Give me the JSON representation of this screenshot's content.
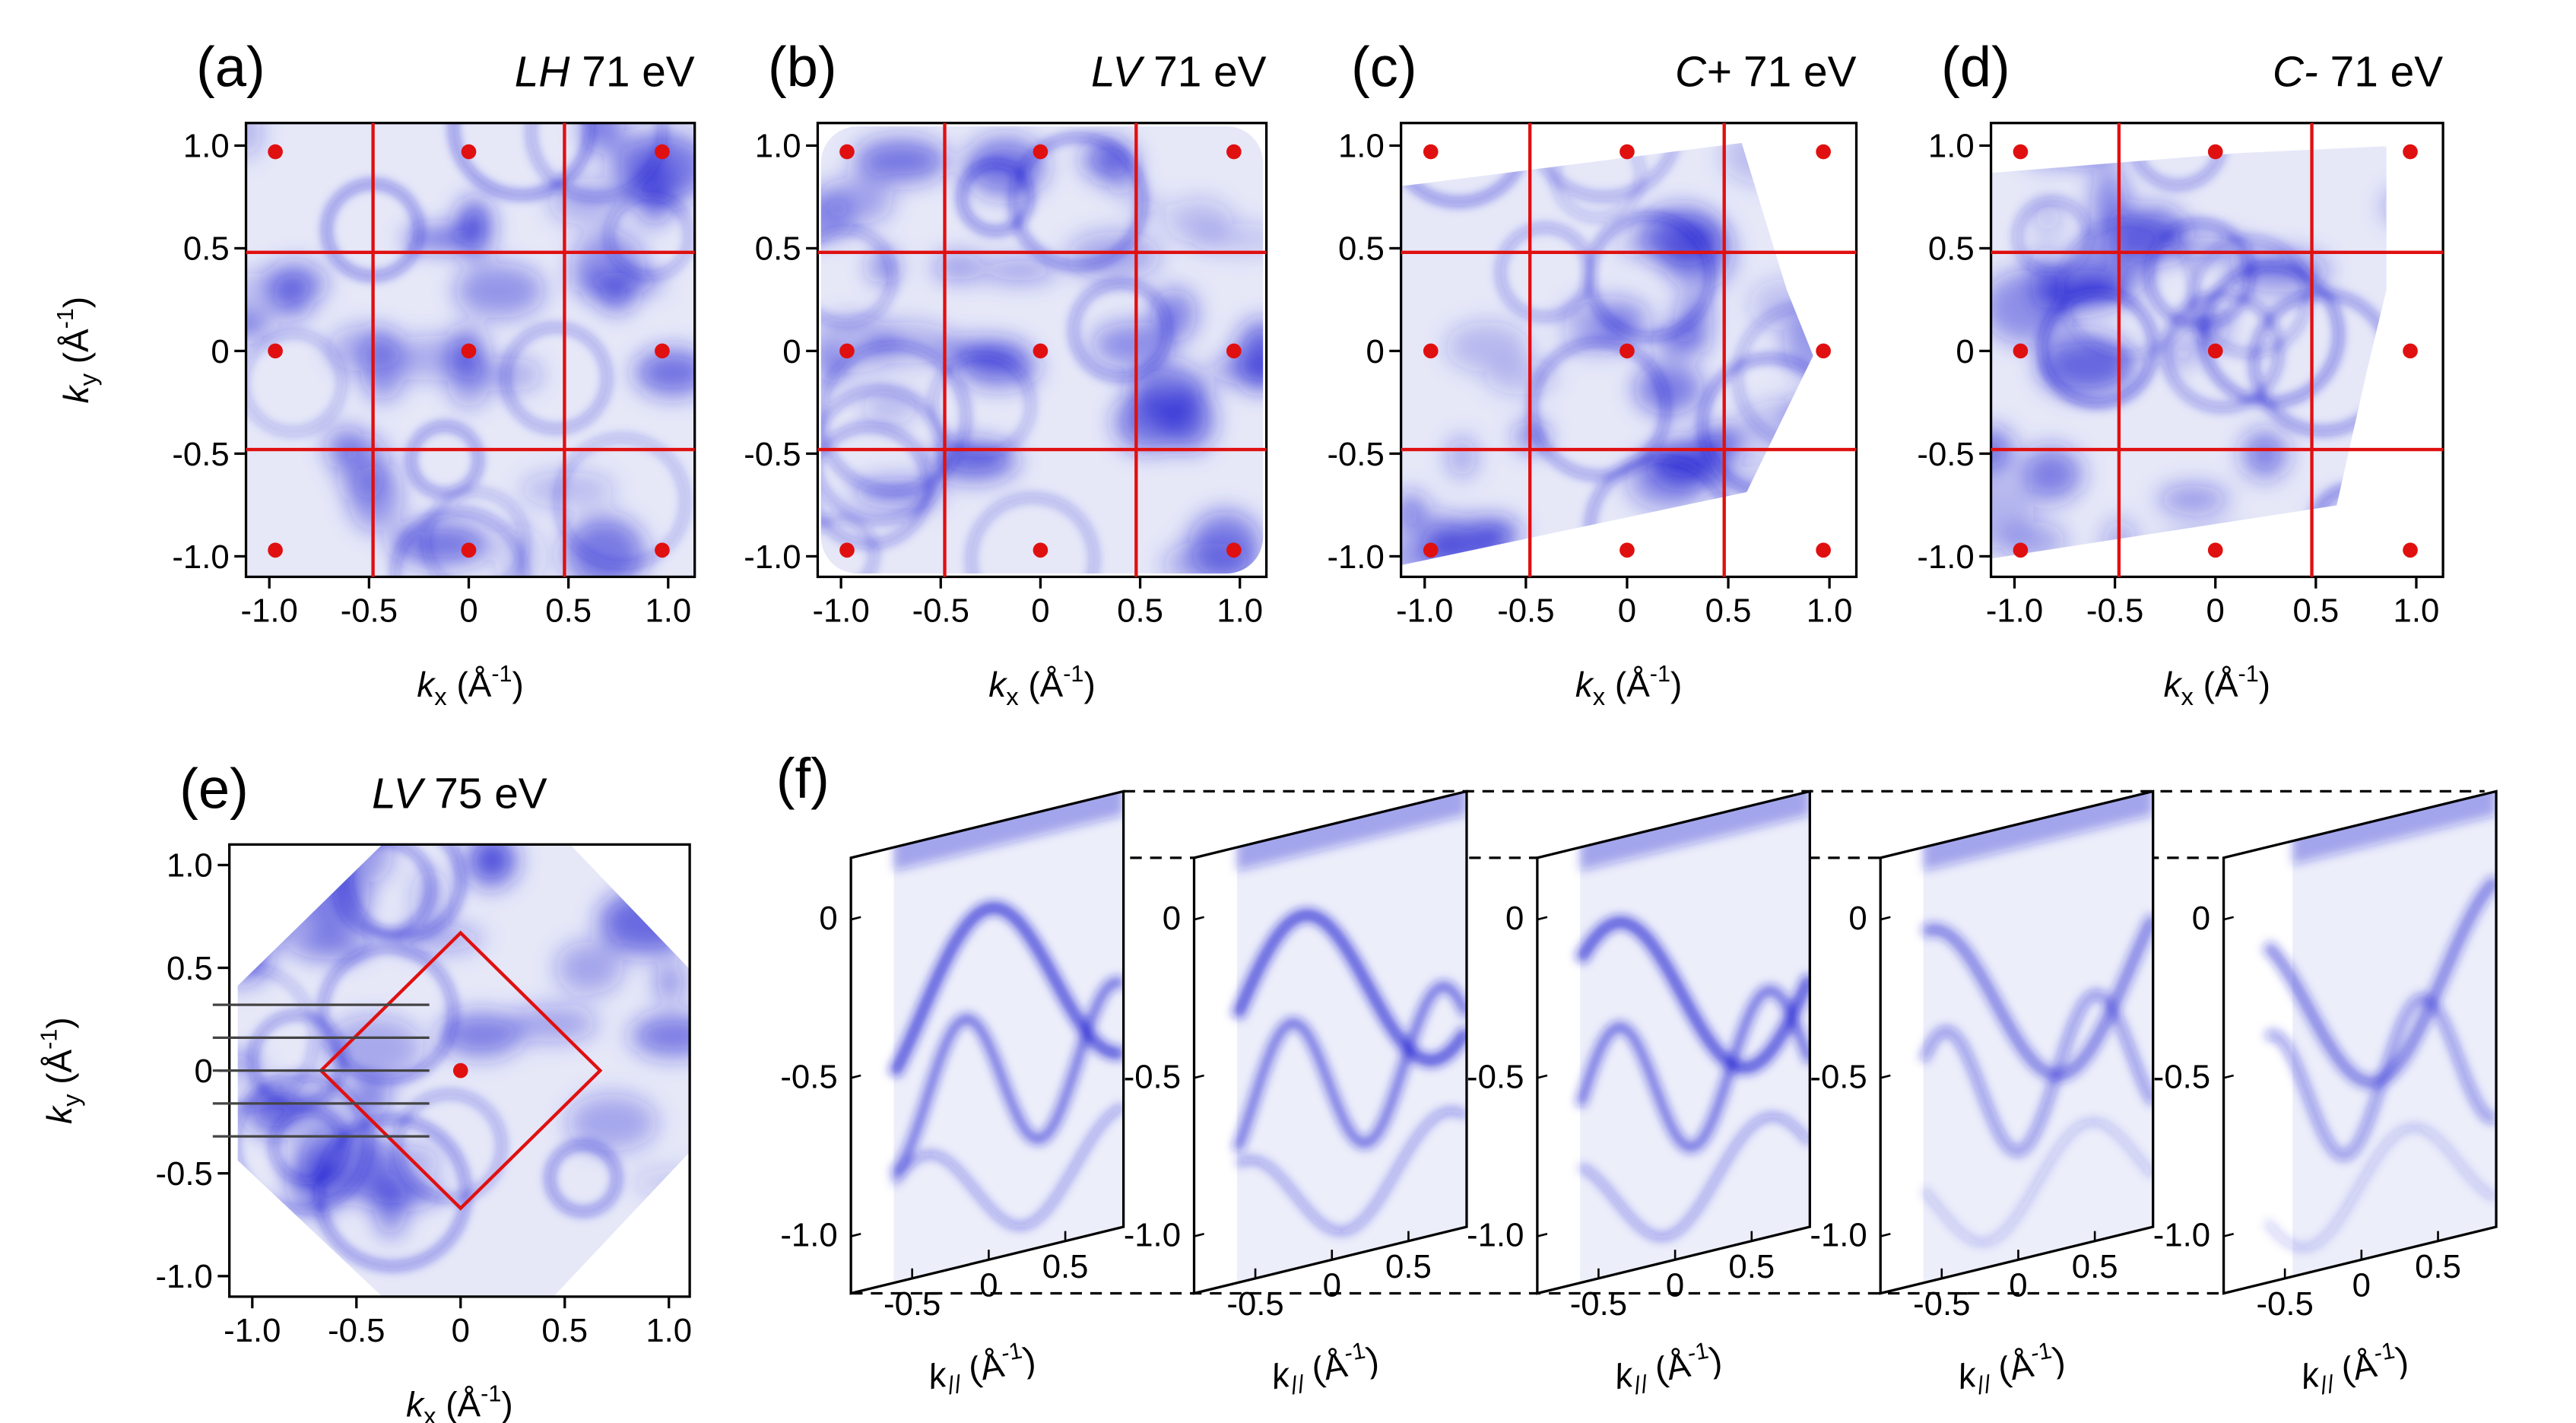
{
  "panels": [
    {
      "label": "(a)",
      "title": {
        "pol": "LH",
        "energy": "71 eV"
      },
      "xlim": [
        -1.117,
        1.133
      ],
      "ylim": [
        -1.1,
        1.11
      ],
      "xticks": [
        {
          "value": -1,
          "label": "-1.0"
        },
        -0.5,
        0,
        0.5,
        {
          "value": 1,
          "label": "1.0"
        }
      ],
      "yticks": [
        {
          "value": 1,
          "label": "1.0"
        },
        0.5,
        0,
        -0.5,
        {
          "value": -1,
          "label": "-1.0"
        }
      ],
      "bz_lines": [
        -0.48,
        0.48
      ],
      "points": [
        -0.97,
        0,
        0.97
      ],
      "xlabel": {
        "main": "k",
        "sub": "x",
        "unit": " (Å",
        "sup": "-1",
        "end": ")"
      },
      "ylabel": {
        "main": "k",
        "sub": "y",
        "unit": " (Å",
        "sup": "-1",
        "end": ")"
      }
    },
    {
      "label": "(b)",
      "title": {
        "pol": "LV",
        "energy": "71 eV"
      },
      "xlim": [
        -1.117,
        1.133
      ],
      "ylim": [
        -1.1,
        1.11
      ],
      "xticks": [
        {
          "value": -1,
          "label": "-1.0"
        },
        -0.5,
        0,
        0.5,
        {
          "value": 1,
          "label": "1.0"
        }
      ],
      "yticks": [
        {
          "value": 1,
          "label": "1.0"
        },
        0.5,
        0,
        -0.5,
        {
          "value": -1,
          "label": "-1.0"
        }
      ],
      "bz_lines": [
        -0.48,
        0.48
      ],
      "points": [
        -0.97,
        0,
        0.97
      ],
      "xlabel": {
        "main": "k",
        "sub": "x",
        "unit": " (Å",
        "sup": "-1",
        "end": ")"
      }
    },
    {
      "label": "(c)",
      "title": {
        "pol": "C+",
        "energy": "71 eV"
      },
      "xlim": [
        -1.117,
        1.133
      ],
      "ylim": [
        -1.1,
        1.11
      ],
      "xticks": [
        {
          "value": -1,
          "label": "-1.0"
        },
        -0.5,
        0,
        0.5,
        {
          "value": 1,
          "label": "1.0"
        }
      ],
      "yticks": [
        {
          "value": 1,
          "label": "1.0"
        },
        0.5,
        0,
        -0.5,
        {
          "value": -1,
          "label": "-1.0"
        }
      ],
      "bz_lines": [
        -0.48,
        0.48
      ],
      "points": [
        -0.97,
        0,
        0.97
      ],
      "xlabel": {
        "main": "k",
        "sub": "x",
        "unit": " (Å",
        "sup": "-1",
        "end": ")"
      }
    },
    {
      "label": "(d)",
      "title": {
        "pol": "C-",
        "energy": "71 eV"
      },
      "xlim": [
        -1.117,
        1.133
      ],
      "ylim": [
        -1.1,
        1.11
      ],
      "xticks": [
        {
          "value": -1,
          "label": "-1.0"
        },
        -0.5,
        0,
        0.5,
        {
          "value": 1,
          "label": "1.0"
        }
      ],
      "yticks": [
        {
          "value": 1,
          "label": "1.0"
        },
        0.5,
        0,
        -0.5,
        {
          "value": -1,
          "label": "-1.0"
        }
      ],
      "bz_lines": [
        -0.48,
        0.48
      ],
      "points": [
        -0.97,
        0,
        0.97
      ],
      "xlabel": {
        "main": "k",
        "sub": "x",
        "unit": " (Å",
        "sup": "-1",
        "end": ")"
      }
    },
    {
      "label": "(e)",
      "title": {
        "pol": "LV",
        "energy": "75 eV"
      },
      "xlim": [
        -1.11,
        1.1
      ],
      "ylim": [
        -1.1,
        1.1
      ],
      "xticks": [
        {
          "value": -1,
          "label": "-1.0"
        },
        -0.5,
        0,
        0.5,
        {
          "value": 1,
          "label": "1.0"
        }
      ],
      "yticks": [
        {
          "value": 1,
          "label": "1.0"
        },
        0.5,
        0,
        -0.5,
        {
          "value": -1,
          "label": "-1.0"
        }
      ],
      "bz_diamond": 0.67,
      "points": [
        0
      ],
      "cuts": [
        0.32,
        0.16,
        0,
        -0.16,
        -0.32
      ],
      "xlabel": {
        "main": "k",
        "sub": "x",
        "unit": " (Å",
        "sup": "-1",
        "end": ")"
      },
      "ylabel": {
        "main": "k",
        "sub": "y",
        "unit": " (Å",
        "sup": "-1",
        "end": ")"
      }
    }
  ],
  "panel_f": {
    "label": "(f)",
    "xlim": [
      -0.9,
      0.88
    ],
    "ylim": [
      -1.18,
      0.195
    ],
    "cuts": [
      {
        "yticks": [
          0,
          -0.5,
          {
            "value": -1,
            "label": "-1.0"
          }
        ],
        "xticks": [
          -0.5,
          0,
          0.5
        ],
        "xlabel": {
          "main": "k",
          "sub": "//",
          "unit": " (Å",
          "sup": "-1",
          "end": ")"
        }
      },
      {
        "yticks": [
          0,
          -0.5,
          {
            "value": -1,
            "label": "-1.0"
          }
        ],
        "xticks": [
          -0.5,
          0,
          0.5
        ],
        "xlabel": {
          "main": "k",
          "sub": "//",
          "unit": " (Å",
          "sup": "-1",
          "end": ")"
        }
      },
      {
        "yticks": [
          0,
          -0.5,
          {
            "value": -1,
            "label": "-1.0"
          }
        ],
        "xticks": [
          -0.5,
          0,
          0.5
        ],
        "xlabel": {
          "main": "k",
          "sub": "//",
          "unit": " (Å",
          "sup": "-1",
          "end": ")"
        }
      },
      {
        "yticks": [
          0,
          -0.5,
          {
            "value": -1,
            "label": "-1.0"
          }
        ],
        "xticks": [
          -0.5,
          0,
          0.5
        ],
        "xlabel": {
          "main": "k",
          "sub": "//",
          "unit": " (Å",
          "sup": "-1",
          "end": ")"
        }
      },
      {
        "yticks": [
          0,
          -0.5,
          {
            "value": -1,
            "label": "-1.0"
          }
        ],
        "xticks": [
          -0.5,
          0,
          0.5
        ],
        "xlabel": {
          "main": "k",
          "sub": "//",
          "unit": " (Å",
          "sup": "-1",
          "end": ")"
        }
      }
    ]
  }
}
